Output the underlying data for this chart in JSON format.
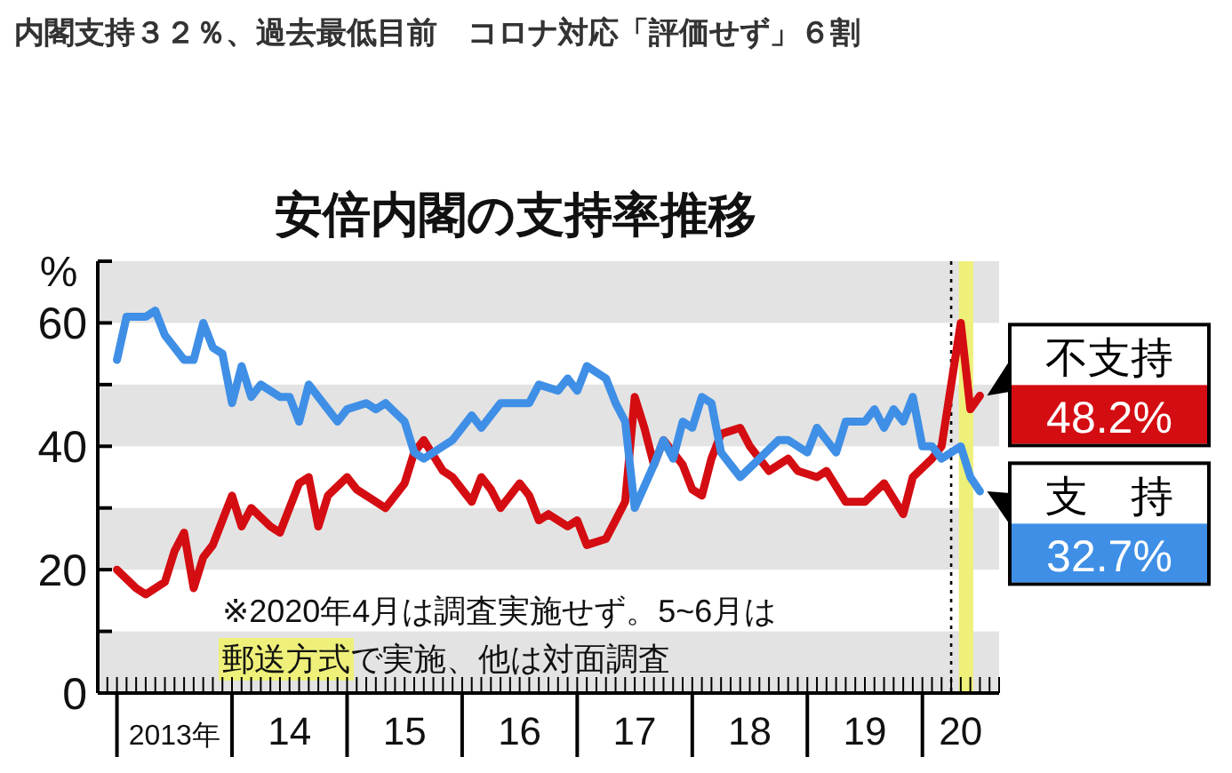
{
  "chart_data": {
    "type": "line",
    "title": "安倍内閣の支持率推移",
    "ylabel": "%",
    "annotations": [
      "内閣支持３２％、過去最低目前　コロナ対応「評価せず」６割",
      "※2020年4月は調査実施せず。5~6月は",
      "郵送方式で実施、他は対面調査"
    ],
    "xlim": [
      "2012-11",
      "2020-09"
    ],
    "xticks": [
      {
        "value": "2013-01",
        "label": null
      },
      {
        "value": "2013-07",
        "label": "2013年"
      },
      {
        "value": "2014-01",
        "label": null
      },
      {
        "value": "2014-07",
        "label": "14"
      },
      {
        "value": "2015-01",
        "label": null
      },
      {
        "value": "2015-07",
        "label": "15"
      },
      {
        "value": "2016-01",
        "label": null
      },
      {
        "value": "2016-07",
        "label": "16"
      },
      {
        "value": "2017-01",
        "label": null
      },
      {
        "value": "2017-07",
        "label": "17"
      },
      {
        "value": "2018-01",
        "label": null
      },
      {
        "value": "2018-07",
        "label": "18"
      },
      {
        "value": "2019-01",
        "label": null
      },
      {
        "value": "2019-07",
        "label": "19"
      },
      {
        "value": "2020-01",
        "label": null
      },
      {
        "value": "2020-05",
        "label": "20"
      }
    ],
    "ylim": [
      0,
      70
    ],
    "yticks": [
      0,
      {
        "value": 10,
        "label": null
      },
      20,
      {
        "value": 30,
        "label": null
      },
      40,
      {
        "value": 50,
        "label": null
      },
      60,
      {
        "value": 70,
        "label": null
      }
    ],
    "line_style": "solid",
    "ref_lines": [
      {
        "axis": "x",
        "value": "2020-04",
        "label": null,
        "color": "#000000",
        "line_style": "dotted"
      }
    ],
    "bands": [
      {
        "axis": "y",
        "from": 0,
        "to": 10,
        "label": null,
        "color": "#e3e3e3"
      },
      {
        "axis": "y",
        "from": 20,
        "to": 30,
        "label": null,
        "color": "#e3e3e3"
      },
      {
        "axis": "y",
        "from": 40,
        "to": 50,
        "label": null,
        "color": "#e3e3e3"
      },
      {
        "axis": "y",
        "from": 60,
        "to": 70,
        "label": null,
        "color": "#e3e3e3"
      },
      {
        "axis": "x",
        "from": "2020-04-25",
        "to": "2020-06-10",
        "label": null,
        "color": "#eef07a"
      }
    ],
    "series": [
      {
        "name": "不支持",
        "color": "#d40d12",
        "x": [
          "2013-01",
          "2013-03",
          "2013-04",
          "2013-06",
          "2013-07",
          "2013-08",
          "2013-09",
          "2013-10",
          "2013-11",
          "2014-01",
          "2014-02",
          "2014-03",
          "2014-05",
          "2014-06",
          "2014-08",
          "2014-09",
          "2014-10",
          "2014-11",
          "2015-01",
          "2015-02",
          "2015-04",
          "2015-05",
          "2015-07",
          "2015-08",
          "2015-09",
          "2015-11",
          "2015-12",
          "2016-02",
          "2016-03",
          "2016-04",
          "2016-05",
          "2016-07",
          "2016-08",
          "2016-09",
          "2016-10",
          "2016-12",
          "2017-01",
          "2017-02",
          "2017-04",
          "2017-05",
          "2017-06",
          "2017-07",
          "2017-08",
          "2017-09",
          "2017-10",
          "2017-11",
          "2017-12",
          "2018-01",
          "2018-02",
          "2018-03",
          "2018-04",
          "2018-06",
          "2018-07",
          "2018-09",
          "2018-11",
          "2018-12",
          "2019-02",
          "2019-03",
          "2019-05",
          "2019-07",
          "2019-09",
          "2019-11",
          "2019-12",
          "2020-02",
          "2020-03",
          "2020-05",
          "2020-06",
          "2020-07"
        ],
        "values": [
          20,
          17,
          16,
          18,
          23,
          26,
          17,
          22,
          24,
          32,
          27,
          30,
          27,
          26,
          34,
          35,
          27,
          32,
          35,
          33,
          31,
          30,
          34,
          39,
          41,
          36,
          35,
          31,
          35,
          33,
          30,
          34,
          32,
          28,
          29,
          27,
          28,
          24,
          25,
          28,
          31,
          48,
          43,
          37,
          41,
          39,
          37,
          33,
          32,
          38,
          42,
          43,
          40,
          36,
          38,
          36,
          35,
          36,
          31,
          31,
          34,
          29,
          35,
          38,
          40,
          60,
          46,
          48.2
        ],
        "value_labels": [
          null,
          null,
          null,
          null,
          null,
          null,
          null,
          null,
          null,
          null,
          null,
          null,
          null,
          null,
          null,
          null,
          null,
          null,
          null,
          null,
          null,
          null,
          null,
          null,
          null,
          null,
          null,
          null,
          null,
          null,
          null,
          null,
          null,
          null,
          null,
          null,
          null,
          null,
          null,
          null,
          null,
          null,
          null,
          null,
          null,
          null,
          null,
          null,
          null,
          null,
          null,
          null,
          null,
          null,
          null,
          null,
          null,
          null,
          null,
          null,
          null,
          null,
          null,
          null,
          null,
          null,
          null,
          "48.2%"
        ]
      },
      {
        "name": "支　持",
        "color": "#3f8fe6",
        "x": [
          "2013-01",
          "2013-02",
          "2013-04",
          "2013-05",
          "2013-06",
          "2013-08",
          "2013-09",
          "2013-10",
          "2013-11",
          "2013-12",
          "2014-01",
          "2014-02",
          "2014-03",
          "2014-04",
          "2014-06",
          "2014-07",
          "2014-08",
          "2014-09",
          "2014-11",
          "2014-12",
          "2015-01",
          "2015-03",
          "2015-04",
          "2015-05",
          "2015-07",
          "2015-08",
          "2015-09",
          "2015-11",
          "2015-12",
          "2016-02",
          "2016-03",
          "2016-05",
          "2016-07",
          "2016-08",
          "2016-09",
          "2016-11",
          "2016-12",
          "2017-01",
          "2017-02",
          "2017-04",
          "2017-05",
          "2017-06",
          "2017-07",
          "2017-09",
          "2017-10",
          "2017-11",
          "2017-12",
          "2018-01",
          "2018-02",
          "2018-03",
          "2018-04",
          "2018-05",
          "2018-06",
          "2018-08",
          "2018-10",
          "2018-11",
          "2019-01",
          "2019-02",
          "2019-03",
          "2019-04",
          "2019-05",
          "2019-07",
          "2019-08",
          "2019-09",
          "2019-10",
          "2019-11",
          "2019-12",
          "2020-01",
          "2020-02",
          "2020-03",
          "2020-05",
          "2020-06",
          "2020-07"
        ],
        "values": [
          54,
          61,
          61,
          62,
          58,
          54,
          54,
          60,
          56,
          55,
          47,
          53,
          48,
          50,
          48,
          48,
          44,
          50,
          46,
          44,
          46,
          47,
          46,
          47,
          44,
          39,
          38,
          40,
          41,
          45,
          43,
          47,
          47,
          47,
          50,
          49,
          51,
          49,
          53,
          51,
          47,
          44,
          30,
          37,
          41,
          38,
          44,
          43,
          48,
          47,
          39,
          37,
          35,
          38,
          41,
          41,
          39,
          43,
          41,
          39,
          44,
          44,
          46,
          43,
          46,
          44,
          48,
          40,
          40,
          38,
          40,
          35,
          32.7
        ],
        "value_labels": [
          null,
          null,
          null,
          null,
          null,
          null,
          null,
          null,
          null,
          null,
          null,
          null,
          null,
          null,
          null,
          null,
          null,
          null,
          null,
          null,
          null,
          null,
          null,
          null,
          null,
          null,
          null,
          null,
          null,
          null,
          null,
          null,
          null,
          null,
          null,
          null,
          null,
          null,
          null,
          null,
          null,
          null,
          null,
          null,
          null,
          null,
          null,
          null,
          null,
          null,
          null,
          null,
          null,
          null,
          null,
          null,
          null,
          null,
          null,
          null,
          null,
          null,
          null,
          null,
          null,
          null,
          null,
          null,
          null,
          null,
          null,
          null,
          "32.7%"
        ]
      }
    ]
  }
}
